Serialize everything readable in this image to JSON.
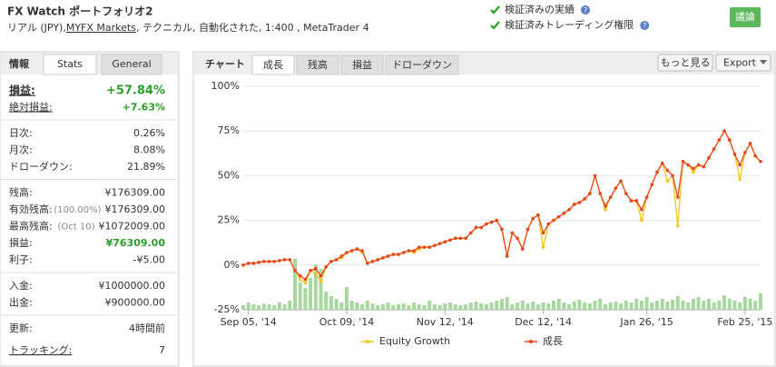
{
  "header": {
    "title": "FX Watch ポートフォリオ2",
    "subtitle_parts": [
      "リアル (JPY), ",
      "MYFX Markets",
      ", テクニカル, 自動化された, 1:400 , MetaTrader 4"
    ],
    "checks": [
      "検証済みの実績",
      "検証済みトレーディング権限"
    ],
    "help": "?",
    "button": "議論"
  },
  "stats": {
    "tabs": [
      "情報",
      "Stats",
      "General"
    ],
    "groups": [
      [
        {
          "label": "損益:",
          "value": "+57.84%"
        },
        {
          "label": "絶対損益:",
          "value": "+7.63%"
        }
      ],
      [
        {
          "label": "日次:",
          "value": "0.26%"
        },
        {
          "label": "月次:",
          "value": "8.08%"
        },
        {
          "label": "ドローダウン:",
          "value": "21.89%"
        }
      ],
      [
        {
          "label": "残高:",
          "value": "¥176309.00"
        },
        {
          "label": "有効残高:",
          "note": "(100.00%)",
          "value": "¥176309.00"
        },
        {
          "label": "最高残高:",
          "note": "(Oct 10)",
          "value": "¥1072009.00"
        },
        {
          "label": "損益:",
          "value": "¥76309.00"
        },
        {
          "label": "利子:",
          "value": "-¥5.00"
        }
      ],
      [
        {
          "label": "入金:",
          "value": "¥1000000.00"
        },
        {
          "label": "出金:",
          "value": "¥900000.00"
        }
      ],
      [
        {
          "label": "更新:",
          "value": "4時間前"
        },
        {
          "label": "トラッキング:",
          "value": "7"
        }
      ]
    ]
  },
  "chart_panel": {
    "label": "チャート",
    "tabs": [
      "成長",
      "残高",
      "損益",
      "ドローダウン"
    ],
    "buttons": [
      "もっと見る",
      "Export"
    ]
  },
  "chart_data": {
    "type": "line",
    "x": [
      0,
      1,
      2,
      3,
      4,
      5,
      6,
      7,
      8,
      9,
      10,
      11,
      12,
      13,
      14,
      15,
      16,
      17,
      18,
      19,
      20,
      21,
      22,
      23,
      24,
      25,
      26,
      27,
      28,
      29,
      30,
      31,
      32,
      33,
      34,
      35,
      36,
      37,
      38,
      39,
      40,
      41,
      42,
      43,
      44,
      45,
      46,
      47,
      48,
      49,
      50,
      51,
      52,
      53,
      54,
      55,
      56,
      57,
      58,
      59,
      60,
      61,
      62,
      63,
      64,
      65,
      66,
      67,
      68,
      69,
      70,
      71,
      72,
      73,
      74,
      75,
      76,
      77,
      78,
      79,
      80,
      81,
      82,
      83,
      84,
      85,
      86,
      87,
      88,
      89,
      90,
      91,
      92,
      93,
      94,
      95,
      96,
      97,
      98,
      99,
      100
    ],
    "xlim": [
      0,
      100
    ],
    "xticks": [
      {
        "value": 1,
        "label": "Sep 05, '14"
      },
      {
        "value": 20,
        "label": "Oct 09, '14"
      },
      {
        "value": 39,
        "label": "Nov 12, '14"
      },
      {
        "value": 58,
        "label": "Dec 12, '14"
      },
      {
        "value": 78,
        "label": "Jan 26, '15"
      },
      {
        "value": 97,
        "label": "Feb 25, '15"
      }
    ],
    "ylim": [
      -25,
      100
    ],
    "yticks": [
      {
        "value": -25,
        "label": "-25%"
      },
      {
        "value": 0,
        "label": "0%"
      },
      {
        "value": 25,
        "label": "25%"
      },
      {
        "value": 50,
        "label": "50%"
      },
      {
        "value": 75,
        "label": "75%"
      },
      {
        "value": 100,
        "label": "100%"
      }
    ],
    "grid": true,
    "series": [
      {
        "name": "Equity Growth",
        "color": "#f5c518",
        "values": [
          0,
          1,
          1,
          1.5,
          2,
          2,
          2,
          2.5,
          3,
          3,
          -3,
          -8,
          -10,
          -3,
          -5,
          -9,
          -1,
          2,
          3,
          4,
          7,
          8,
          9,
          7,
          1,
          2,
          3,
          4,
          5,
          6,
          6,
          7,
          8,
          7,
          9,
          10,
          10,
          11,
          12,
          13,
          14,
          15,
          15,
          15,
          18,
          21,
          21,
          23,
          24,
          25,
          20,
          5,
          18,
          15,
          9,
          20,
          26,
          28,
          10,
          23,
          25,
          27,
          29,
          31,
          34,
          35,
          37,
          40,
          50,
          40,
          31,
          38,
          43,
          47,
          40,
          36,
          36,
          25,
          38,
          45,
          52,
          57,
          47,
          50,
          22,
          58,
          56,
          52,
          56,
          55,
          60,
          65,
          70,
          75,
          70,
          62,
          48,
          63,
          68,
          61,
          58
        ]
      },
      {
        "name": "成長",
        "color": "#e8461c",
        "values": [
          0,
          1,
          1,
          1.5,
          2,
          2,
          2,
          2.5,
          3,
          3,
          -3,
          -6,
          -8,
          -3,
          -2,
          -6,
          -1,
          2,
          3,
          5,
          7,
          8,
          9,
          8,
          1,
          2,
          3,
          4,
          5,
          6,
          6,
          7,
          8,
          8,
          10,
          10,
          10,
          11,
          12,
          13,
          14,
          15,
          15,
          15,
          18,
          21,
          21,
          23,
          24,
          25,
          20,
          5,
          18,
          15,
          9,
          20,
          26,
          28,
          18,
          23,
          25,
          27,
          29,
          31,
          34,
          35,
          37,
          40,
          50,
          40,
          33,
          38,
          43,
          47,
          40,
          36,
          36,
          31,
          38,
          45,
          52,
          57,
          53,
          50,
          38,
          58,
          56,
          54,
          56,
          55,
          60,
          65,
          70,
          75,
          70,
          62,
          56,
          63,
          68,
          61,
          58
        ]
      }
    ],
    "volume": {
      "color": "#a8d8a0",
      "y2lim": [
        0,
        100
      ],
      "values": [
        5,
        8,
        6,
        5,
        7,
        6,
        5,
        8,
        6,
        10,
        56,
        30,
        24,
        35,
        50,
        45,
        20,
        15,
        12,
        8,
        25,
        10,
        8,
        6,
        10,
        7,
        5,
        6,
        8,
        5,
        6,
        7,
        5,
        8,
        6,
        5,
        10,
        6,
        5,
        7,
        8,
        6,
        5,
        6,
        8,
        9,
        7,
        6,
        8,
        10,
        12,
        14,
        6,
        8,
        10,
        7,
        9,
        6,
        8,
        7,
        10,
        12,
        8,
        6,
        9,
        11,
        8,
        7,
        10,
        12,
        6,
        8,
        9,
        7,
        10,
        8,
        12,
        10,
        14,
        8,
        10,
        12,
        9,
        11,
        15,
        10,
        8,
        12,
        14,
        10,
        12,
        8,
        10,
        16,
        12,
        10,
        8,
        14,
        12,
        10,
        18
      ]
    },
    "legend": "bottom"
  }
}
